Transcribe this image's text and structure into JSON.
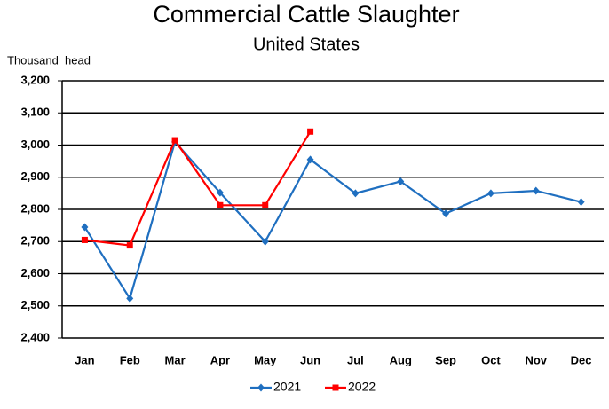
{
  "chart_data": {
    "type": "line",
    "title": "Commercial Cattle Slaughter",
    "subtitle": "United States",
    "y_axis_label": "Thousand  head",
    "categories": [
      "Jan",
      "Feb",
      "Mar",
      "Apr",
      "May",
      "Jun",
      "Jul",
      "Aug",
      "Sep",
      "Oct",
      "Nov",
      "Dec"
    ],
    "series": [
      {
        "name": "2021",
        "color": "#1f6fc0",
        "marker": "diamond",
        "values": [
          2745,
          2523,
          3010,
          2852,
          2700,
          2955,
          2850,
          2887,
          2787,
          2850,
          2858,
          2823
        ]
      },
      {
        "name": "2022",
        "color": "#ff0000",
        "marker": "square",
        "values": [
          2705,
          2688,
          3015,
          2813,
          2813,
          3042,
          null,
          null,
          null,
          null,
          null,
          null
        ]
      }
    ],
    "ylim": [
      2400,
      3200
    ],
    "yticks": [
      {
        "value": 2400,
        "label": "2,400"
      },
      {
        "value": 2500,
        "label": "2,500"
      },
      {
        "value": 2600,
        "label": "2,600"
      },
      {
        "value": 2700,
        "label": "2,700"
      },
      {
        "value": 2800,
        "label": "2,800"
      },
      {
        "value": 2900,
        "label": "2,900"
      },
      {
        "value": 3000,
        "label": "3,000"
      },
      {
        "value": 3100,
        "label": "3,100"
      },
      {
        "value": 3200,
        "label": "3,200"
      }
    ],
    "grid": true,
    "legend": "bottom"
  }
}
